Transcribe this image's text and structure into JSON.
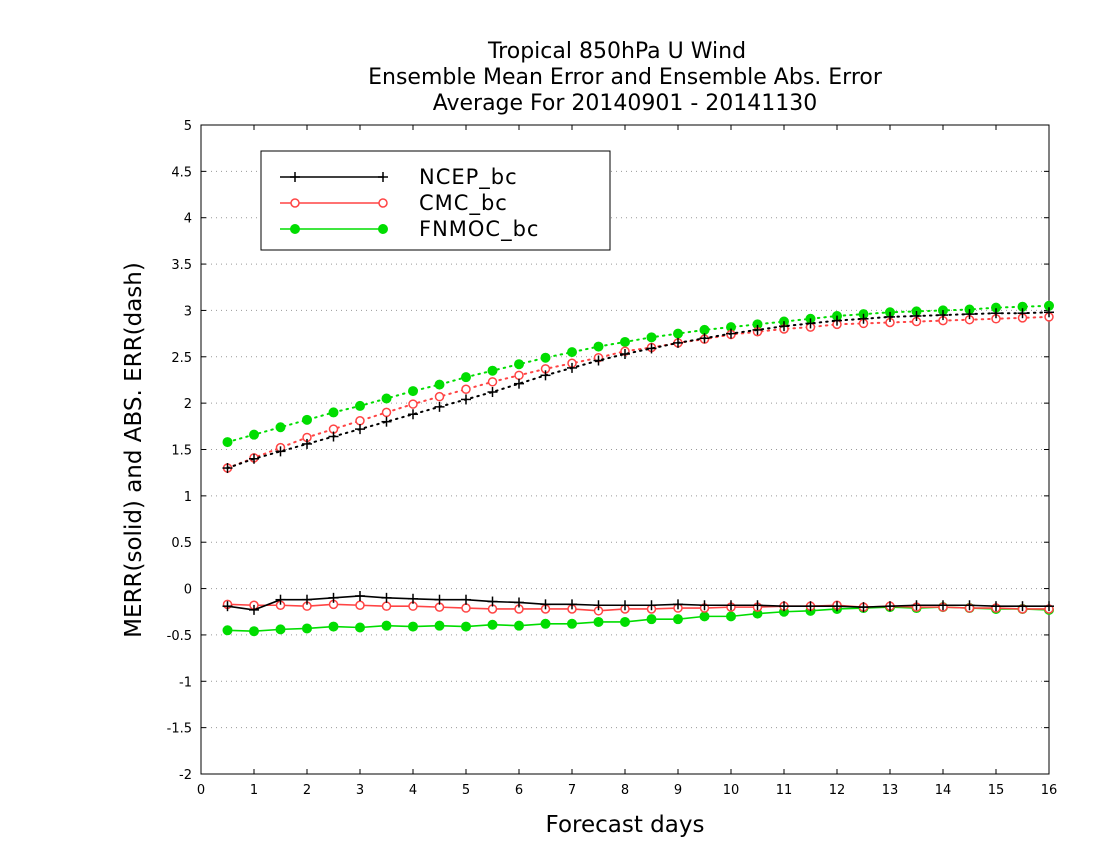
{
  "chart_data": {
    "type": "line",
    "title": [
      "Tropical 850hPa U Wind",
      "Ensemble Mean Error and Ensemble Abs. Error",
      "Average For 20140901 - 20141130"
    ],
    "xlabel": "Forecast days",
    "ylabel": "MERR(solid) and ABS. ERR(dash)",
    "xlim": [
      0,
      16
    ],
    "ylim": [
      -2,
      5
    ],
    "x_ticks": [
      0,
      1,
      2,
      3,
      4,
      5,
      6,
      7,
      8,
      9,
      10,
      11,
      12,
      13,
      14,
      15,
      16
    ],
    "y_ticks": [
      -2,
      -1.5,
      -1,
      -0.5,
      0,
      0.5,
      1,
      1.5,
      2,
      2.5,
      3,
      3.5,
      4,
      4.5,
      5
    ],
    "y_tick_labels": [
      "-2",
      "-1.5",
      "-1",
      "-0.5",
      "0",
      "0.5",
      "1",
      "1.5",
      "2",
      "2.5",
      "3",
      "3.5",
      "4",
      "4.5",
      "5"
    ],
    "grid": "horizontal-dotted",
    "legend_placement": "top-left",
    "x": [
      0.5,
      1,
      1.5,
      2,
      2.5,
      3,
      3.5,
      4,
      4.5,
      5,
      5.5,
      6,
      6.5,
      7,
      7.5,
      8,
      8.5,
      9,
      9.5,
      10,
      10.5,
      11,
      11.5,
      12,
      12.5,
      13,
      13.5,
      14,
      14.5,
      15,
      15.5,
      16
    ],
    "series": [
      {
        "name": "NCEP_bc",
        "color": "#000000",
        "marker": "plus",
        "merr": [
          -0.19,
          -0.23,
          -0.12,
          -0.12,
          -0.1,
          -0.08,
          -0.1,
          -0.11,
          -0.12,
          -0.12,
          -0.14,
          -0.15,
          -0.17,
          -0.17,
          -0.18,
          -0.18,
          -0.18,
          -0.17,
          -0.18,
          -0.18,
          -0.18,
          -0.19,
          -0.19,
          -0.19,
          -0.2,
          -0.19,
          -0.18,
          -0.18,
          -0.18,
          -0.19,
          -0.19,
          -0.19
        ],
        "abs_err": [
          1.3,
          1.4,
          1.48,
          1.56,
          1.64,
          1.72,
          1.8,
          1.88,
          1.96,
          2.04,
          2.12,
          2.21,
          2.3,
          2.38,
          2.46,
          2.53,
          2.59,
          2.65,
          2.7,
          2.75,
          2.79,
          2.83,
          2.86,
          2.89,
          2.91,
          2.93,
          2.94,
          2.95,
          2.96,
          2.97,
          2.97,
          2.98
        ]
      },
      {
        "name": "CMC_bc",
        "color": "#ff4444",
        "marker": "open-circle",
        "merr": [
          -0.17,
          -0.18,
          -0.18,
          -0.19,
          -0.17,
          -0.18,
          -0.19,
          -0.19,
          -0.2,
          -0.21,
          -0.22,
          -0.22,
          -0.22,
          -0.22,
          -0.24,
          -0.22,
          -0.22,
          -0.21,
          -0.21,
          -0.2,
          -0.2,
          -0.19,
          -0.19,
          -0.18,
          -0.2,
          -0.19,
          -0.2,
          -0.2,
          -0.21,
          -0.21,
          -0.22,
          -0.22
        ],
        "abs_err": [
          1.3,
          1.41,
          1.52,
          1.63,
          1.72,
          1.81,
          1.9,
          1.99,
          2.07,
          2.15,
          2.23,
          2.3,
          2.37,
          2.43,
          2.49,
          2.56,
          2.6,
          2.65,
          2.69,
          2.74,
          2.77,
          2.8,
          2.82,
          2.85,
          2.86,
          2.87,
          2.88,
          2.89,
          2.9,
          2.91,
          2.92,
          2.93
        ]
      },
      {
        "name": "FNMOC_bc",
        "color": "#00dd00",
        "marker": "filled-circle",
        "merr": [
          -0.45,
          -0.46,
          -0.44,
          -0.43,
          -0.41,
          -0.42,
          -0.4,
          -0.41,
          -0.4,
          -0.41,
          -0.39,
          -0.4,
          -0.38,
          -0.38,
          -0.36,
          -0.36,
          -0.33,
          -0.33,
          -0.3,
          -0.3,
          -0.27,
          -0.25,
          -0.24,
          -0.22,
          -0.21,
          -0.2,
          -0.21,
          -0.2,
          -0.21,
          -0.22,
          -0.22,
          -0.23
        ],
        "abs_err": [
          1.58,
          1.66,
          1.74,
          1.82,
          1.9,
          1.97,
          2.05,
          2.13,
          2.2,
          2.28,
          2.35,
          2.42,
          2.49,
          2.55,
          2.61,
          2.66,
          2.71,
          2.75,
          2.79,
          2.82,
          2.85,
          2.88,
          2.91,
          2.94,
          2.96,
          2.98,
          2.99,
          3.0,
          3.01,
          3.03,
          3.04,
          3.05
        ]
      }
    ]
  }
}
